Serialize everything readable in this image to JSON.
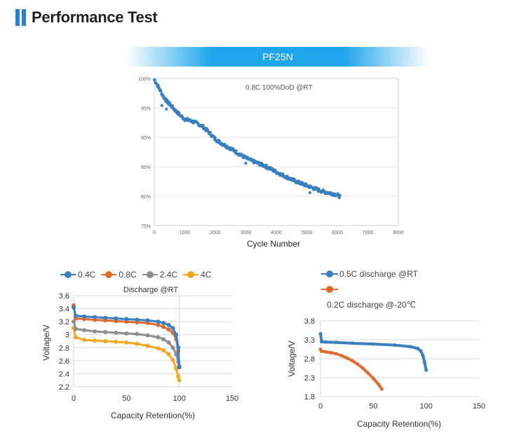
{
  "header": {
    "title": "Performance Test"
  },
  "banner": {
    "label": "PF25N"
  },
  "chart_data": [
    {
      "type": "scatter",
      "title": "0.8C 100%DoD @RT",
      "xlabel": "Cycle Number",
      "ylabel": "",
      "xlim": [
        0,
        8000
      ],
      "ylim": [
        75,
        100
      ],
      "xticks": [
        0,
        1000,
        2000,
        3000,
        4000,
        5000,
        6000,
        7000,
        8000
      ],
      "yticks": [
        75,
        80,
        85,
        90,
        95,
        100
      ],
      "ytick_labels": [
        "75%",
        "80%",
        "85%",
        "90%",
        "95%",
        "100%"
      ],
      "color": "#3b7fbf",
      "x": [
        0,
        100,
        200,
        300,
        400,
        500,
        600,
        700,
        800,
        900,
        1000,
        1200,
        1400,
        1600,
        1800,
        2000,
        2200,
        2400,
        2600,
        2800,
        3000,
        3200,
        3400,
        3600,
        3800,
        4000,
        4200,
        4400,
        4600,
        4800,
        5000,
        5200,
        5400,
        5600,
        5800,
        6000,
        6100
      ],
      "y": [
        99.8,
        98.9,
        97.9,
        96.9,
        96.2,
        95.6,
        95.1,
        94.5,
        94.0,
        93.5,
        93.1,
        92.8,
        92.4,
        91.8,
        90.8,
        89.7,
        89.0,
        88.4,
        87.8,
        87.1,
        86.5,
        86.0,
        85.6,
        85.2,
        84.7,
        84.1,
        83.6,
        83.1,
        82.6,
        82.2,
        81.8,
        81.4,
        81.0,
        80.7,
        80.5,
        80.2,
        79.9
      ],
      "outliers": [
        [
          250,
          95.4
        ],
        [
          400,
          94.8
        ],
        [
          500,
          95.9
        ],
        [
          3000,
          85.6
        ],
        [
          5100,
          80.6
        ]
      ]
    },
    {
      "type": "line",
      "title": "Discharge @RT",
      "xlabel": "Capacity Retention(%)",
      "ylabel": "Voltage/V",
      "xlim": [
        0,
        150
      ],
      "ylim": [
        2.2,
        3.6
      ],
      "xticks": [
        0,
        50,
        100,
        150
      ],
      "yticks": [
        2.2,
        2.4,
        2.6,
        2.8,
        3,
        3.2,
        3.4,
        3.6
      ],
      "x": [
        0,
        2,
        10,
        20,
        30,
        40,
        50,
        60,
        70,
        80,
        85,
        90,
        94,
        97,
        99,
        100
      ],
      "series": [
        {
          "name": "0.4C",
          "color": "#3b7fbf",
          "values": [
            3.42,
            3.29,
            3.28,
            3.27,
            3.26,
            3.25,
            3.24,
            3.23,
            3.22,
            3.2,
            3.18,
            3.15,
            3.1,
            3.0,
            2.8,
            2.5
          ]
        },
        {
          "name": "0.8C",
          "color": "#e06b2f",
          "values": [
            3.45,
            3.25,
            3.24,
            3.23,
            3.22,
            3.21,
            3.2,
            3.19,
            3.18,
            3.15,
            3.12,
            3.08,
            3.03,
            2.93,
            2.75,
            2.52
          ]
        },
        {
          "name": "2.4C",
          "color": "#8e8e8e",
          "values": [
            3.2,
            3.09,
            3.07,
            3.05,
            3.04,
            3.03,
            3.02,
            3.01,
            2.99,
            2.96,
            2.93,
            2.88,
            2.8,
            2.7,
            2.58,
            2.5
          ]
        },
        {
          "name": "4C",
          "color": "#f5a623",
          "values": [
            3.1,
            2.96,
            2.92,
            2.91,
            2.9,
            2.89,
            2.88,
            2.86,
            2.83,
            2.79,
            2.76,
            2.7,
            2.61,
            2.48,
            2.36,
            2.3
          ]
        }
      ]
    },
    {
      "type": "line",
      "title": "",
      "xlabel": "Capacity Retention(%)",
      "ylabel": "Voltage/V",
      "xlim": [
        0,
        150
      ],
      "ylim": [
        1.8,
        3.8
      ],
      "xticks": [
        0,
        50,
        100,
        150
      ],
      "yticks": [
        1.8,
        2.3,
        2.8,
        3.3,
        3.8
      ],
      "series": [
        {
          "name": "0.5C discharge @RT",
          "color": "#3b7fbf",
          "x": [
            0,
            1,
            5,
            15,
            30,
            50,
            70,
            85,
            92,
            95,
            97,
            98.5,
            100
          ],
          "values": [
            3.46,
            3.25,
            3.24,
            3.23,
            3.21,
            3.19,
            3.16,
            3.12,
            3.07,
            3.0,
            2.88,
            2.7,
            2.5
          ]
        },
        {
          "name": "0.2C discharge @-20℃",
          "color": "#e06b2f",
          "x": [
            0,
            1,
            5,
            10,
            15,
            20,
            25,
            30,
            35,
            40,
            45,
            50,
            55,
            58
          ],
          "values": [
            3.05,
            3.0,
            2.98,
            2.96,
            2.93,
            2.88,
            2.82,
            2.75,
            2.66,
            2.55,
            2.42,
            2.28,
            2.12,
            2.0
          ]
        }
      ]
    }
  ]
}
